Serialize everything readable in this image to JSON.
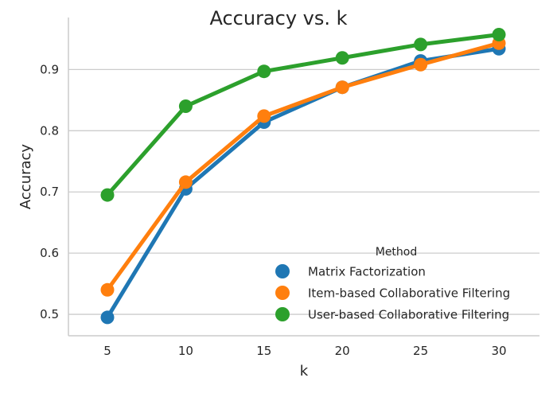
{
  "chart_data": {
    "type": "line",
    "title": "Accuracy vs. k",
    "xlabel": "k",
    "ylabel": "Accuracy",
    "categories": [
      "5",
      "10",
      "15",
      "20",
      "25",
      "30"
    ],
    "y_ticks": [
      "0.5",
      "0.6",
      "0.7",
      "0.8",
      "0.9"
    ],
    "ylim": [
      0.465,
      0.985
    ],
    "grid": "horizontal",
    "legend": {
      "title": "Method",
      "placement": "lower-right"
    },
    "series": [
      {
        "name": "Matrix Factorization",
        "color": "#1f77b4",
        "values": [
          0.495,
          0.705,
          0.814,
          0.871,
          0.914,
          0.934
        ]
      },
      {
        "name": "Item-based Collaborative Filtering",
        "color": "#ff7f0e",
        "values": [
          0.54,
          0.716,
          0.824,
          0.871,
          0.908,
          0.943
        ]
      },
      {
        "name": "User-based Collaborative Filtering",
        "color": "#2ca02c",
        "values": [
          0.695,
          0.84,
          0.897,
          0.919,
          0.941,
          0.957
        ]
      }
    ]
  }
}
